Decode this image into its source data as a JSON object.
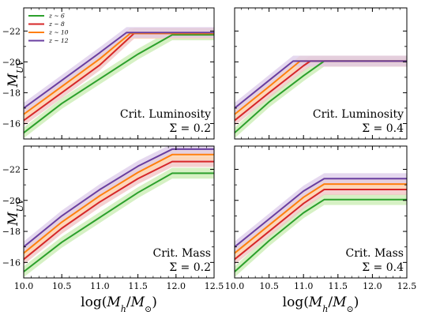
{
  "chart_data": [
    {
      "type": "line",
      "annotation": [
        "Crit. Luminosity",
        "Σ = 0.2"
      ],
      "ylabel": "M_UV",
      "xlabel": "",
      "xlim": [
        10.0,
        12.5
      ],
      "ylim": [
        -15.0,
        -23.5
      ],
      "y_inverted": true,
      "yticks": [
        -16,
        -18,
        -20,
        -22
      ],
      "legend": {
        "placement": "top-left"
      },
      "band_width_mag": 0.7,
      "series": [
        {
          "name": "z ~ 6",
          "color": "#2ca02c",
          "band": "#c8ecb0",
          "x": [
            10.0,
            10.5,
            11.0,
            11.5,
            11.95,
            12.5
          ],
          "y": [
            -15.4,
            -17.3,
            -18.9,
            -20.5,
            -21.75,
            -21.75
          ]
        },
        {
          "name": "z ~ 8",
          "color": "#d62728",
          "band": "#f2c2c2",
          "x": [
            10.0,
            10.5,
            11.0,
            11.45,
            12.5
          ],
          "y": [
            -16.2,
            -18.0,
            -19.8,
            -21.85,
            -21.85
          ]
        },
        {
          "name": "z ~ 10",
          "color": "#ff7f0e",
          "band": "#ffd8b0",
          "x": [
            10.0,
            10.5,
            11.0,
            11.4,
            12.5
          ],
          "y": [
            -16.6,
            -18.4,
            -20.2,
            -21.85,
            -21.85
          ]
        },
        {
          "name": "z ~ 12",
          "color": "#6a3fa0",
          "band": "#dccbe9",
          "x": [
            10.0,
            10.5,
            11.0,
            11.35,
            12.5
          ],
          "y": [
            -17.0,
            -18.8,
            -20.6,
            -21.9,
            -21.9
          ]
        }
      ]
    },
    {
      "type": "line",
      "annotation": [
        "Crit. Luminosity",
        "Σ = 0.4"
      ],
      "ylabel": "",
      "xlabel": "",
      "xlim": [
        10.0,
        12.5
      ],
      "ylim": [
        -15.0,
        -23.5
      ],
      "y_inverted": true,
      "yticks": [
        -16,
        -18,
        -20,
        -22
      ],
      "band_width_mag": 0.7,
      "series": [
        {
          "name": "z ~ 6",
          "color": "#2ca02c",
          "band": "#c8ecb0",
          "x": [
            10.0,
            10.5,
            11.0,
            11.3,
            12.5
          ],
          "y": [
            -15.4,
            -17.4,
            -19.1,
            -20.05,
            -20.05
          ]
        },
        {
          "name": "z ~ 8",
          "color": "#d62728",
          "band": "#f2c2c2",
          "x": [
            10.0,
            10.5,
            11.0,
            11.1,
            12.5
          ],
          "y": [
            -16.2,
            -18.0,
            -19.75,
            -20.05,
            -20.05
          ]
        },
        {
          "name": "z ~ 10",
          "color": "#ff7f0e",
          "band": "#ffd8b0",
          "x": [
            10.0,
            10.5,
            10.95,
            12.5
          ],
          "y": [
            -16.6,
            -18.4,
            -20.05,
            -20.05
          ]
        },
        {
          "name": "z ~ 12",
          "color": "#6a3fa0",
          "band": "#dccbe9",
          "x": [
            10.0,
            10.5,
            10.85,
            12.5
          ],
          "y": [
            -17.0,
            -18.8,
            -20.05,
            -20.05
          ]
        }
      ]
    },
    {
      "type": "line",
      "annotation": [
        "Crit. Mass",
        "Σ = 0.2"
      ],
      "ylabel": "M_UV",
      "xlabel": "log(M_h/M_⊙)",
      "xlim": [
        10.0,
        12.5
      ],
      "ylim": [
        -15.0,
        -23.5
      ],
      "y_inverted": true,
      "xticks": [
        10.0,
        10.5,
        11.0,
        11.5,
        12.0,
        12.5
      ],
      "xtick_labels": [
        "10.0",
        "10.5",
        "11.0",
        "11.5",
        "12.0",
        "12.5"
      ],
      "yticks": [
        -16,
        -18,
        -20,
        -22
      ],
      "band_width_mag": 0.7,
      "series": [
        {
          "name": "z ~ 6",
          "color": "#2ca02c",
          "band": "#c8ecb0",
          "x": [
            10.0,
            10.5,
            11.0,
            11.5,
            11.95,
            12.5
          ],
          "y": [
            -15.4,
            -17.3,
            -18.9,
            -20.5,
            -21.75,
            -21.75
          ]
        },
        {
          "name": "z ~ 8",
          "color": "#d62728",
          "band": "#f2c2c2",
          "x": [
            10.0,
            10.5,
            11.0,
            11.5,
            11.95,
            12.5
          ],
          "y": [
            -16.2,
            -18.2,
            -19.9,
            -21.4,
            -22.5,
            -22.5
          ]
        },
        {
          "name": "z ~ 10",
          "color": "#ff7f0e",
          "band": "#ffd8b0",
          "x": [
            10.0,
            10.5,
            11.0,
            11.5,
            11.95,
            12.5
          ],
          "y": [
            -16.6,
            -18.6,
            -20.3,
            -21.8,
            -22.95,
            -22.95
          ]
        },
        {
          "name": "z ~ 12",
          "color": "#6a3fa0",
          "band": "#dccbe9",
          "x": [
            10.0,
            10.5,
            11.0,
            11.5,
            11.95,
            12.5
          ],
          "y": [
            -17.0,
            -19.0,
            -20.7,
            -22.2,
            -23.3,
            -23.3
          ]
        }
      ]
    },
    {
      "type": "line",
      "annotation": [
        "Crit. Mass",
        "Σ = 0.4"
      ],
      "ylabel": "",
      "xlabel": "log(M_h/M_⊙)",
      "xlim": [
        10.0,
        12.5
      ],
      "ylim": [
        -15.0,
        -23.5
      ],
      "y_inverted": true,
      "xticks": [
        10.0,
        10.5,
        11.0,
        11.5,
        12.0,
        12.5
      ],
      "xtick_labels": [
        "10.0",
        "10.5",
        "11.0",
        "11.5",
        "12.0",
        "12.5"
      ],
      "yticks": [
        -16,
        -18,
        -20,
        -22
      ],
      "band_width_mag": 0.7,
      "series": [
        {
          "name": "z ~ 6",
          "color": "#2ca02c",
          "band": "#c8ecb0",
          "x": [
            10.0,
            10.5,
            11.0,
            11.3,
            12.5
          ],
          "y": [
            -15.4,
            -17.4,
            -19.2,
            -20.05,
            -20.05
          ]
        },
        {
          "name": "z ~ 8",
          "color": "#d62728",
          "band": "#f2c2c2",
          "x": [
            10.0,
            10.5,
            11.0,
            11.3,
            12.5
          ],
          "y": [
            -16.2,
            -18.0,
            -19.8,
            -20.7,
            -20.7
          ]
        },
        {
          "name": "z ~ 10",
          "color": "#ff7f0e",
          "band": "#ffd8b0",
          "x": [
            10.0,
            10.5,
            11.0,
            11.3,
            12.5
          ],
          "y": [
            -16.6,
            -18.4,
            -20.2,
            -21.05,
            -21.05
          ]
        },
        {
          "name": "z ~ 12",
          "color": "#6a3fa0",
          "band": "#dccbe9",
          "x": [
            10.0,
            10.5,
            11.0,
            11.3,
            12.5
          ],
          "y": [
            -17.0,
            -18.8,
            -20.6,
            -21.4,
            -21.4
          ]
        }
      ]
    }
  ]
}
